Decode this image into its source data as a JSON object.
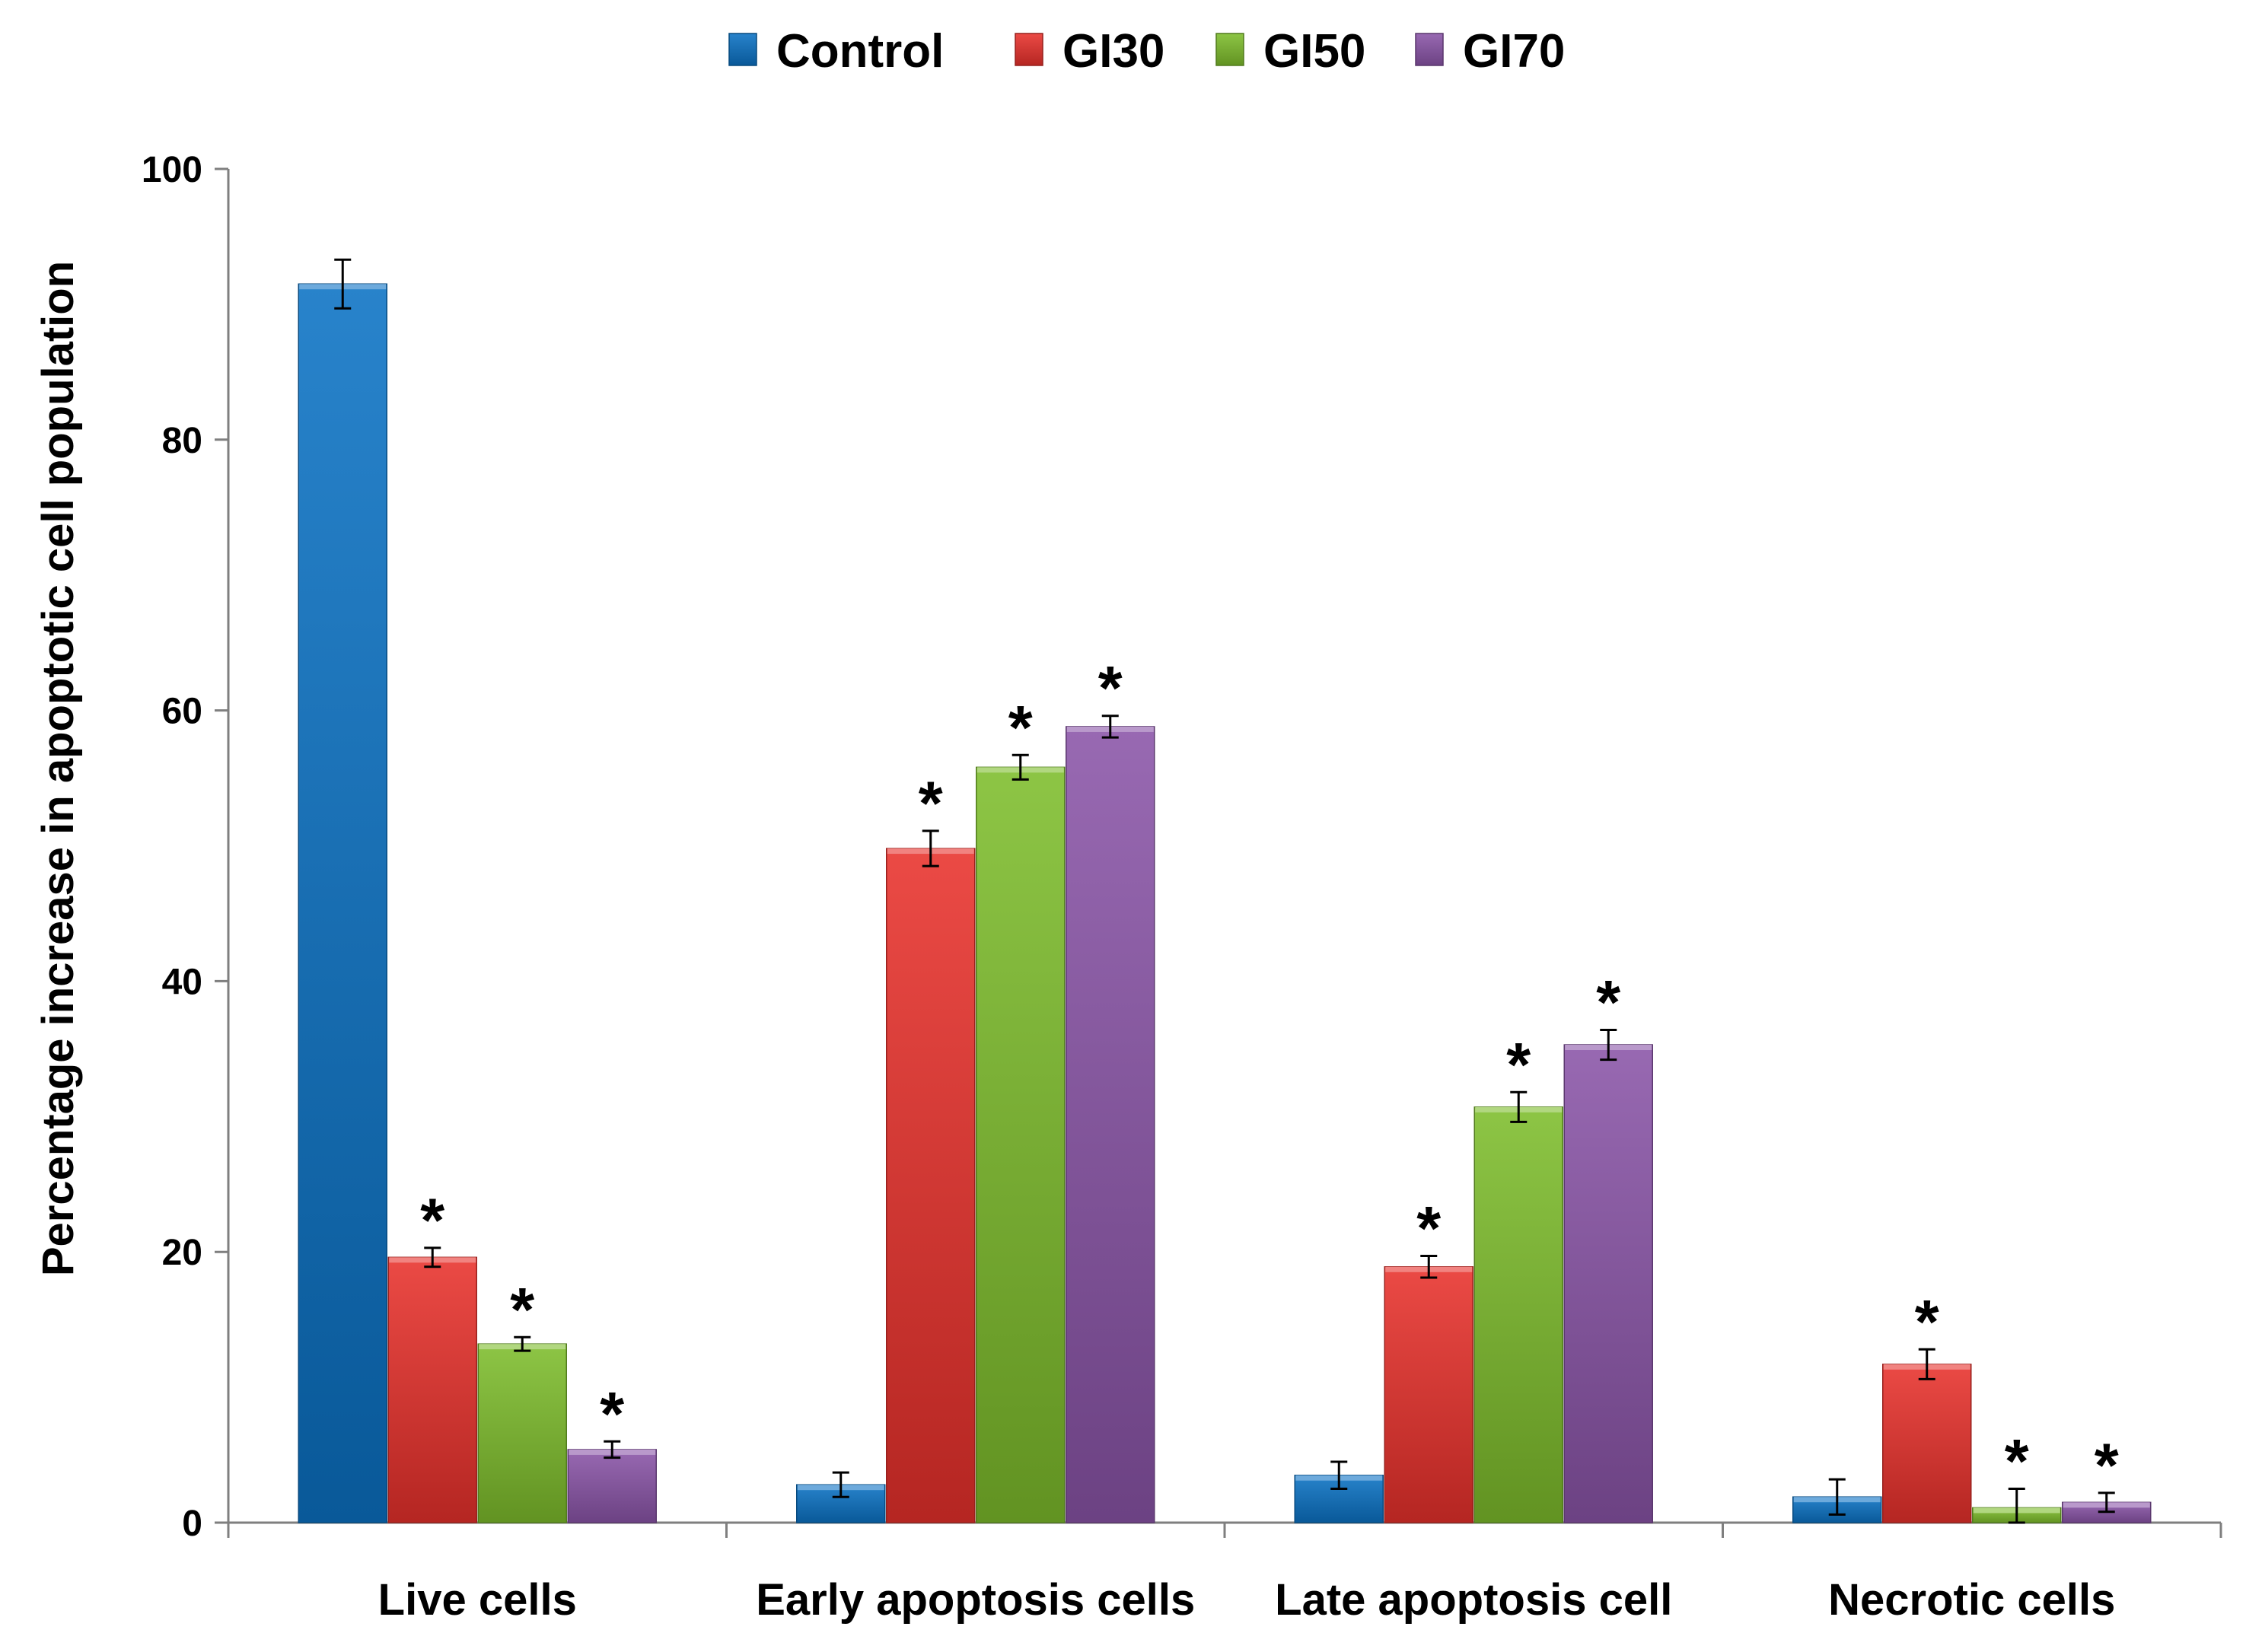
{
  "chart_data": {
    "type": "bar",
    "title": "",
    "xlabel": "",
    "ylabel": "Percentage increase in apoptotic cell population",
    "ylim": [
      0,
      100
    ],
    "yticks": [
      0,
      20,
      40,
      60,
      80,
      100
    ],
    "grid": false,
    "legend_position": "top-center",
    "categories": [
      "Live cells",
      "Early apoptosis cells",
      "Late apoptosis cell",
      "Necrotic cells"
    ],
    "series": [
      {
        "name": "Control",
        "color": "#0b72c4",
        "values": [
          91.5,
          2.8,
          3.5,
          1.9
        ],
        "errors": [
          1.8,
          0.9,
          1.0,
          1.3
        ],
        "significance": [
          "",
          "",
          "",
          ""
        ]
      },
      {
        "name": "GI30",
        "color": "#e8312c",
        "values": [
          19.6,
          49.8,
          18.9,
          11.7
        ],
        "errors": [
          0.7,
          1.3,
          0.8,
          1.1
        ],
        "significance": [
          "*",
          "*",
          "*",
          "*"
        ]
      },
      {
        "name": "GI50",
        "color": "#7dbd2c",
        "values": [
          13.2,
          55.8,
          30.7,
          1.1
        ],
        "errors": [
          0.5,
          0.9,
          1.1,
          1.4
        ],
        "significance": [
          "*",
          "*",
          "*",
          "*"
        ]
      },
      {
        "name": "GI70",
        "color": "#8a55a8",
        "values": [
          5.4,
          58.8,
          35.3,
          1.5
        ],
        "errors": [
          0.6,
          0.8,
          1.1,
          0.7
        ],
        "significance": [
          "*",
          "*",
          "*",
          "*"
        ]
      }
    ]
  }
}
